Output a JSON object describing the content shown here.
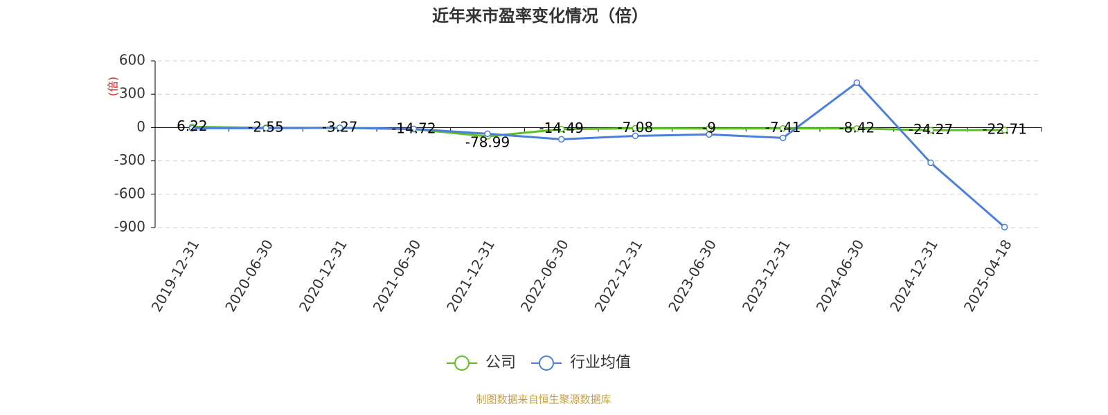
{
  "chart_data": {
    "type": "line",
    "title": "近年来市盈率变化情况（倍）",
    "y_label": "(倍)",
    "source": "制图数据来自恒生聚源数据库",
    "categories": [
      "2019-12-31",
      "2020-06-30",
      "2020-12-31",
      "2021-06-30",
      "2021-12-31",
      "2022-06-30",
      "2022-12-31",
      "2023-06-30",
      "2023-12-31",
      "2024-06-30",
      "2024-12-31",
      "2025-04-18"
    ],
    "series": [
      {
        "name": "公司",
        "color": "#5cc01f",
        "values": [
          6.22,
          -2.55,
          -3.27,
          -14.72,
          -78.99,
          -14.49,
          -7.08,
          -9,
          -7.41,
          -8.42,
          -24.27,
          -22.71
        ],
        "labels": true
      },
      {
        "name": "行业均值",
        "color": "#4a7fdc",
        "values": [
          -6,
          -6,
          -2,
          -12,
          -56,
          -106,
          -75,
          -62,
          -93,
          404,
          -317,
          -896
        ],
        "labels": false
      }
    ],
    "ylim": [
      -900,
      600
    ],
    "yticks": [
      600,
      300,
      0,
      -300,
      -600,
      -900
    ],
    "grid": true
  }
}
